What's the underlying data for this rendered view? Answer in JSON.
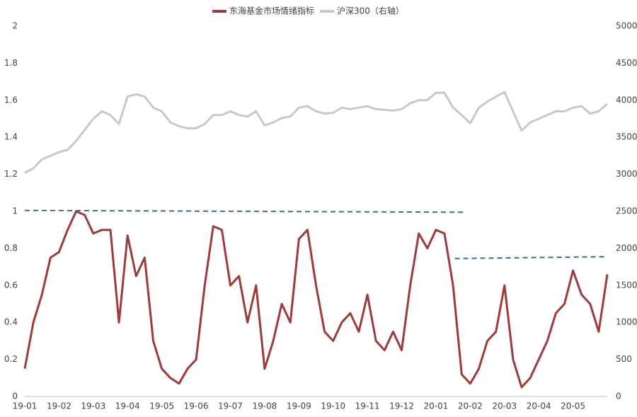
{
  "chart_data": {
    "type": "line",
    "categories": [
      "19-01",
      null,
      null,
      null,
      "19-02",
      null,
      null,
      null,
      "19-03",
      null,
      null,
      null,
      "19-04",
      null,
      null,
      null,
      "19-05",
      null,
      null,
      null,
      "19-06",
      null,
      null,
      null,
      "19-07",
      null,
      null,
      null,
      "19-08",
      null,
      null,
      null,
      "19-09",
      null,
      null,
      null,
      "19-10",
      null,
      null,
      null,
      "19-11",
      null,
      null,
      null,
      "19-12",
      null,
      null,
      null,
      "20-01",
      null,
      null,
      null,
      "20-02",
      null,
      null,
      null,
      "20-03",
      null,
      null,
      null,
      "20-04",
      null,
      null,
      null,
      "20-05",
      null,
      null,
      null,
      null
    ],
    "series": [
      {
        "name": "东海基金市场情绪指标",
        "color": "#9e3a3a",
        "values": [
          0.15,
          0.4,
          0.55,
          0.75,
          0.78,
          0.9,
          1.0,
          0.98,
          0.88,
          0.9,
          0.9,
          0.4,
          0.87,
          0.65,
          0.75,
          0.3,
          0.15,
          0.1,
          0.07,
          0.15,
          0.2,
          0.6,
          0.92,
          0.9,
          0.6,
          0.65,
          0.4,
          0.6,
          0.15,
          0.3,
          0.5,
          0.4,
          0.85,
          0.9,
          0.6,
          0.35,
          0.3,
          0.4,
          0.45,
          0.35,
          0.55,
          0.3,
          0.25,
          0.35,
          0.25,
          0.6,
          0.88,
          0.8,
          0.9,
          0.88,
          0.6,
          0.12,
          0.07,
          0.15,
          0.3,
          0.35,
          0.6,
          0.2,
          0.05,
          0.1,
          0.2,
          0.3,
          0.45,
          0.5,
          0.68,
          0.55,
          0.5,
          0.35,
          0.66
        ]
      },
      {
        "name": "沪深300（右轴）",
        "color": "#c8c8c8",
        "axis": "y2",
        "values": [
          3020,
          3080,
          3200,
          3250,
          3300,
          3330,
          3450,
          3600,
          3750,
          3850,
          3800,
          3680,
          4050,
          4080,
          4050,
          3900,
          3850,
          3700,
          3650,
          3620,
          3620,
          3680,
          3800,
          3800,
          3850,
          3800,
          3780,
          3850,
          3660,
          3700,
          3760,
          3780,
          3900,
          3920,
          3850,
          3820,
          3830,
          3900,
          3880,
          3900,
          3920,
          3880,
          3870,
          3860,
          3880,
          3960,
          4000,
          4000,
          4100,
          4100,
          3900,
          3800,
          3690,
          3900,
          3980,
          4050,
          4110,
          3850,
          3590,
          3700,
          3750,
          3800,
          3850,
          3850,
          3900,
          3920,
          3820,
          3850,
          3950
        ]
      }
    ],
    "reference_lines": [
      {
        "color": "#3d6d99",
        "x": [
          0,
          51.4
        ],
        "values": [
          1.005,
          0.995
        ]
      },
      {
        "color": "#3d6d99",
        "x": [
          50.2,
          68
        ],
        "values": [
          0.745,
          0.755
        ]
      }
    ],
    "ylim": [
      0,
      2
    ],
    "yticks": [
      0,
      0.2,
      0.4,
      0.6,
      0.8,
      1,
      1.2,
      1.4,
      1.6,
      1.8,
      2
    ],
    "y2lim": [
      0,
      5000
    ],
    "y2ticks": [
      0,
      500,
      1000,
      1500,
      2000,
      2500,
      3000,
      3500,
      4000,
      4500,
      5000
    ],
    "legend": "top"
  }
}
